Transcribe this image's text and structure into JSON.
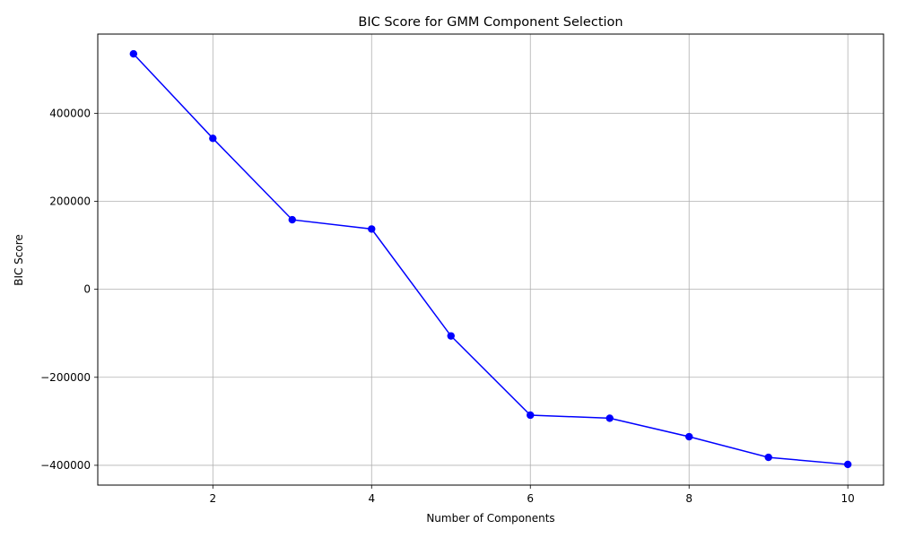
{
  "chart_data": {
    "type": "line",
    "title": "BIC Score for GMM Component Selection",
    "xlabel": "Number of Components",
    "ylabel": "BIC Score",
    "x": [
      1,
      2,
      3,
      4,
      5,
      6,
      7,
      8,
      9,
      10
    ],
    "series": [
      {
        "values": [
          535000,
          343000,
          158000,
          137000,
          -106000,
          -286000,
          -293000,
          -335000,
          -382000,
          -398000
        ],
        "color": "#0000ff",
        "marker": "circle"
      }
    ],
    "xlim": [
      0.55,
      10.45
    ],
    "ylim": [
      -445000,
      580000
    ],
    "xticks": [
      2,
      4,
      6,
      8,
      10
    ],
    "xtick_labels": [
      "2",
      "4",
      "6",
      "8",
      "10"
    ],
    "yticks": [
      -400000,
      -200000,
      0,
      200000,
      400000
    ],
    "ytick_labels": [
      "−400000",
      "−200000",
      "0",
      "200000",
      "400000"
    ],
    "grid": true
  }
}
